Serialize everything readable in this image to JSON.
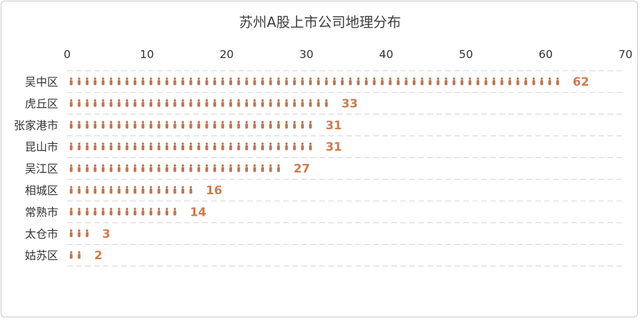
{
  "chart_data": {
    "type": "bar",
    "orientation": "horizontal",
    "title": "苏州A股上市公司地理分布",
    "xlabel": "",
    "ylabel": "",
    "xlim": [
      0,
      70
    ],
    "xticks": [
      "0",
      "10",
      "20",
      "30",
      "40",
      "50",
      "60",
      "70"
    ],
    "x_axis_position": "top",
    "categories": [
      "吴中区",
      "虎丘区",
      "张家港市",
      "昆山市",
      "吴江区",
      "相城区",
      "常熟市",
      "太仓市",
      "姑苏区"
    ],
    "values": [
      62,
      33,
      31,
      31,
      27,
      16,
      14,
      3,
      2
    ],
    "data_labels": [
      "62",
      "33",
      "31",
      "31",
      "27",
      "16",
      "14",
      "3",
      "2"
    ],
    "bar_style": "pictograph-people",
    "grid": "horizontal-dashed",
    "legend": "none"
  },
  "colors": {
    "bar": "#c0754f",
    "label": "#d07a4e",
    "grid": "#d9d9d9"
  }
}
